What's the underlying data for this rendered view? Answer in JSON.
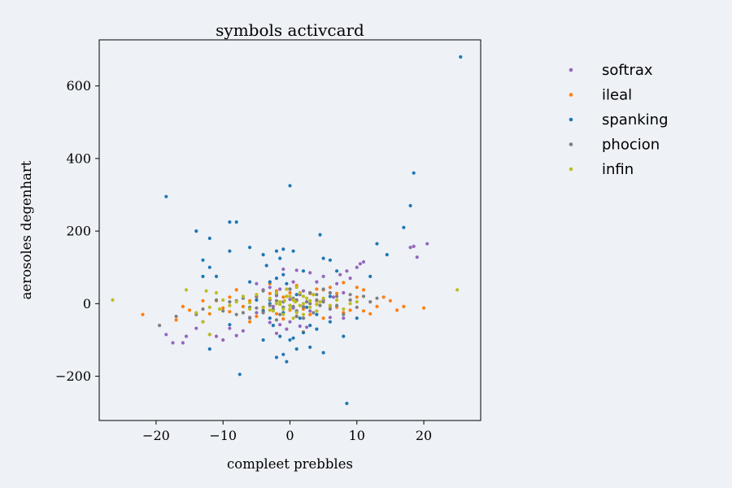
{
  "chart_data": {
    "type": "scatter",
    "title": "symbols activcard",
    "xlabel": "compleet prebbles",
    "ylabel": "aerosoles degenhart",
    "xlim": [
      -28.5,
      28.5
    ],
    "ylim": [
      -322,
      727
    ],
    "xticks": [
      -20,
      -10,
      0,
      10,
      20
    ],
    "xtick_labels": [
      "−20",
      "−10",
      "0",
      "10",
      "20"
    ],
    "yticks": [
      -200,
      0,
      200,
      400,
      600
    ],
    "ytick_labels": [
      "−200",
      "0",
      "200",
      "400",
      "600"
    ],
    "grid": false,
    "legend_position": "outside-right",
    "series": [
      {
        "name": "softrax",
        "color": "#9467bd",
        "points": [
          [
            -18.5,
            -85
          ],
          [
            -17.5,
            -108
          ],
          [
            -16,
            -108
          ],
          [
            -15.5,
            -90
          ],
          [
            -14,
            -68
          ],
          [
            -13,
            -50
          ],
          [
            -12,
            -85
          ],
          [
            -11,
            -90
          ],
          [
            -10,
            -100
          ],
          [
            -9,
            -68
          ],
          [
            -8,
            -88
          ],
          [
            -7,
            -75
          ],
          [
            -6,
            -38
          ],
          [
            -5,
            -25
          ],
          [
            -4,
            -10
          ],
          [
            -3,
            -52
          ],
          [
            -2.5,
            -8
          ],
          [
            -2,
            -82
          ],
          [
            -1.5,
            -58
          ],
          [
            -1,
            -10
          ],
          [
            -0.5,
            -70
          ],
          [
            0,
            -50
          ],
          [
            0.5,
            -12
          ],
          [
            1,
            -35
          ],
          [
            1.5,
            -62
          ],
          [
            2,
            -8
          ],
          [
            2.5,
            -65
          ],
          [
            3,
            -20
          ],
          [
            4,
            -2
          ],
          [
            5,
            10
          ],
          [
            6,
            30
          ],
          [
            7,
            55
          ],
          [
            7.5,
            80
          ],
          [
            8,
            30
          ],
          [
            8.5,
            90
          ],
          [
            9,
            70
          ],
          [
            10,
            100
          ],
          [
            10.5,
            110
          ],
          [
            11,
            115
          ],
          [
            -1,
            95
          ],
          [
            1,
            92
          ],
          [
            3,
            85
          ],
          [
            5,
            75
          ],
          [
            -3,
            45
          ],
          [
            2,
            35
          ],
          [
            4,
            60
          ],
          [
            -2,
            22
          ],
          [
            0,
            12
          ],
          [
            6,
            -38
          ],
          [
            18,
            155
          ],
          [
            18.5,
            158
          ],
          [
            19,
            128
          ],
          [
            20.5,
            165
          ],
          [
            -5,
            55
          ],
          [
            8,
            -40
          ],
          [
            -1.5,
            40
          ],
          [
            0.5,
            60
          ],
          [
            3.5,
            25
          ],
          [
            -4,
            38
          ],
          [
            6.5,
            18
          ]
        ]
      },
      {
        "name": "ileal",
        "color": "#ff7f0e",
        "points": [
          [
            -22,
            -30
          ],
          [
            -17,
            -45
          ],
          [
            -16,
            -8
          ],
          [
            -15,
            -18
          ],
          [
            -13,
            8
          ],
          [
            -12,
            -28
          ],
          [
            -11,
            8
          ],
          [
            -10,
            -12
          ],
          [
            -9,
            18
          ],
          [
            -8,
            38
          ],
          [
            -7,
            -8
          ],
          [
            -6,
            8
          ],
          [
            -5,
            18
          ],
          [
            -4,
            -18
          ],
          [
            -3,
            28
          ],
          [
            -2,
            -28
          ],
          [
            -1,
            18
          ],
          [
            0,
            -18
          ],
          [
            1,
            8
          ],
          [
            2,
            -78
          ],
          [
            3,
            28
          ],
          [
            4,
            8
          ],
          [
            5,
            38
          ],
          [
            6,
            -8
          ],
          [
            7,
            28
          ],
          [
            8,
            58
          ],
          [
            9,
            -18
          ],
          [
            10,
            18
          ],
          [
            11,
            38
          ],
          [
            12,
            -28
          ],
          [
            13,
            -8
          ],
          [
            14,
            18
          ],
          [
            15,
            8
          ],
          [
            16,
            -18
          ],
          [
            17,
            -8
          ],
          [
            20,
            -12
          ],
          [
            -9,
            -22
          ],
          [
            -6,
            -50
          ],
          [
            -2,
            35
          ],
          [
            1,
            50
          ],
          [
            3,
            -30
          ],
          [
            5,
            -40
          ],
          [
            7,
            -10
          ],
          [
            9,
            10
          ],
          [
            11,
            -20
          ],
          [
            4,
            40
          ],
          [
            -3,
            55
          ],
          [
            0,
            30
          ],
          [
            -5,
            -35
          ],
          [
            6,
            45
          ],
          [
            2,
            -15
          ],
          [
            -1,
            -42
          ],
          [
            8,
            -25
          ],
          [
            10,
            45
          ]
        ]
      },
      {
        "name": "spanking",
        "color": "#1f77b4",
        "points": [
          [
            -18.5,
            295
          ],
          [
            -14,
            200
          ],
          [
            -13,
            120
          ],
          [
            -12,
            180
          ],
          [
            -12,
            100
          ],
          [
            -11,
            75
          ],
          [
            -9,
            225
          ],
          [
            -8,
            225
          ],
          [
            -9,
            145
          ],
          [
            -13,
            75
          ],
          [
            -12,
            -125
          ],
          [
            -9,
            -58
          ],
          [
            -7.5,
            -195
          ],
          [
            -6,
            155
          ],
          [
            -4,
            135
          ],
          [
            -3.5,
            105
          ],
          [
            -3,
            60
          ],
          [
            -2,
            145
          ],
          [
            -1.5,
            125
          ],
          [
            -1,
            150
          ],
          [
            0,
            325
          ],
          [
            0.5,
            145
          ],
          [
            -1,
            80
          ],
          [
            -2,
            30
          ],
          [
            0,
            40
          ],
          [
            1,
            -20
          ],
          [
            1.5,
            -40
          ],
          [
            0,
            -100
          ],
          [
            -0.5,
            -160
          ],
          [
            -1,
            -140
          ],
          [
            1,
            -125
          ],
          [
            2,
            -80
          ],
          [
            3,
            -120
          ],
          [
            4,
            -70
          ],
          [
            5,
            -135
          ],
          [
            6,
            -50
          ],
          [
            4.5,
            190
          ],
          [
            5,
            125
          ],
          [
            6,
            120
          ],
          [
            7,
            90
          ],
          [
            8.5,
            -275
          ],
          [
            8,
            -90
          ],
          [
            10,
            -40
          ],
          [
            12,
            75
          ],
          [
            13,
            165
          ],
          [
            14.5,
            135
          ],
          [
            17,
            210
          ],
          [
            18,
            270
          ],
          [
            18.5,
            360
          ],
          [
            25.5,
            680
          ],
          [
            -2.5,
            -60
          ],
          [
            -3,
            -40
          ],
          [
            -4,
            -20
          ],
          [
            -5,
            10
          ],
          [
            3,
            30
          ],
          [
            2.5,
            -10
          ],
          [
            -1,
            -25
          ],
          [
            1,
            25
          ],
          [
            -2,
            70
          ],
          [
            2,
            90
          ],
          [
            -4,
            -100
          ],
          [
            3,
            -60
          ],
          [
            0.5,
            10
          ],
          [
            -0.5,
            55
          ],
          [
            4,
            -30
          ],
          [
            6,
            20
          ],
          [
            -6,
            60
          ],
          [
            -1.5,
            -90
          ],
          [
            -2,
            -148
          ],
          [
            0.5,
            -95
          ],
          [
            2,
            -40
          ],
          [
            -3,
            0
          ]
        ]
      },
      {
        "name": "phocion",
        "color": "#7f7f7f",
        "points": [
          [
            -19.5,
            -60
          ],
          [
            -17,
            -35
          ],
          [
            -14,
            -30
          ],
          [
            -13,
            -15
          ],
          [
            -11,
            10
          ],
          [
            -10,
            -20
          ],
          [
            -9,
            5
          ],
          [
            -8,
            -30
          ],
          [
            -7,
            15
          ],
          [
            -6,
            -10
          ],
          [
            -5,
            20
          ],
          [
            -4,
            -25
          ],
          [
            -3,
            10
          ],
          [
            -2.5,
            -15
          ],
          [
            -2,
            25
          ],
          [
            -1.5,
            -30
          ],
          [
            -1,
            5
          ],
          [
            -0.5,
            20
          ],
          [
            0,
            -5
          ],
          [
            0.5,
            15
          ],
          [
            1,
            -20
          ],
          [
            1.5,
            25
          ],
          [
            2,
            -10
          ],
          [
            2.5,
            5
          ],
          [
            3,
            30
          ],
          [
            3.5,
            -25
          ],
          [
            4,
            10
          ],
          [
            4.5,
            -5
          ],
          [
            5,
            40
          ],
          [
            6,
            -15
          ],
          [
            7,
            20
          ],
          [
            8,
            -30
          ],
          [
            9,
            10
          ],
          [
            10,
            -10
          ],
          [
            11,
            20
          ],
          [
            12,
            5
          ],
          [
            13,
            15
          ],
          [
            -6,
            -40
          ],
          [
            -4,
            35
          ],
          [
            -2,
            -45
          ],
          [
            0,
            40
          ],
          [
            2,
            -40
          ],
          [
            4,
            25
          ],
          [
            -3,
            -5
          ],
          [
            1,
            10
          ],
          [
            -1,
            -10
          ],
          [
            3,
            0
          ],
          [
            5,
            5
          ],
          [
            -5,
            -12
          ],
          [
            7,
            -5
          ],
          [
            -7,
            -25
          ],
          [
            9,
            25
          ],
          [
            -8,
            8
          ],
          [
            6,
            30
          ],
          [
            -2,
            8
          ],
          [
            1,
            -35
          ],
          [
            0.5,
            -8
          ]
        ]
      },
      {
        "name": "infin",
        "color": "#bcbd22",
        "points": [
          [
            -26.5,
            10
          ],
          [
            -15.5,
            38
          ],
          [
            -14,
            -25
          ],
          [
            -12.5,
            35
          ],
          [
            -11,
            30
          ],
          [
            -10.5,
            -15
          ],
          [
            -9,
            -5
          ],
          [
            -8,
            5
          ],
          [
            -7,
            20
          ],
          [
            -6,
            -15
          ],
          [
            -5,
            25
          ],
          [
            -4,
            -10
          ],
          [
            -3,
            15
          ],
          [
            -2.5,
            -20
          ],
          [
            -2,
            30
          ],
          [
            -1.5,
            5
          ],
          [
            -1,
            -15
          ],
          [
            -0.5,
            20
          ],
          [
            0,
            -5
          ],
          [
            0.5,
            10
          ],
          [
            1,
            -25
          ],
          [
            1.5,
            30
          ],
          [
            2,
            0
          ],
          [
            2.5,
            15
          ],
          [
            3,
            -10
          ],
          [
            3.5,
            25
          ],
          [
            4,
            -20
          ],
          [
            4.5,
            5
          ],
          [
            5,
            15
          ],
          [
            6,
            -5
          ],
          [
            7,
            10
          ],
          [
            8,
            -15
          ],
          [
            9,
            0
          ],
          [
            10,
            5
          ],
          [
            -12,
            -10
          ],
          [
            -13,
            -50
          ],
          [
            -10,
            10
          ],
          [
            -0.5,
            40
          ],
          [
            0.5,
            -40
          ],
          [
            1,
            45
          ],
          [
            -1,
            -30
          ],
          [
            2,
            -30
          ],
          [
            -2,
            0
          ],
          [
            0,
            20
          ],
          [
            1.5,
            -5
          ],
          [
            -1.5,
            -2
          ],
          [
            3,
            8
          ],
          [
            -3,
            -18
          ],
          [
            0,
            -15
          ],
          [
            0.8,
            5
          ],
          [
            -0.8,
            8
          ],
          [
            25,
            38
          ],
          [
            -12,
            -85
          ],
          [
            -6,
            3
          ],
          [
            4,
            -2
          ],
          [
            2,
            20
          ]
        ]
      }
    ]
  }
}
